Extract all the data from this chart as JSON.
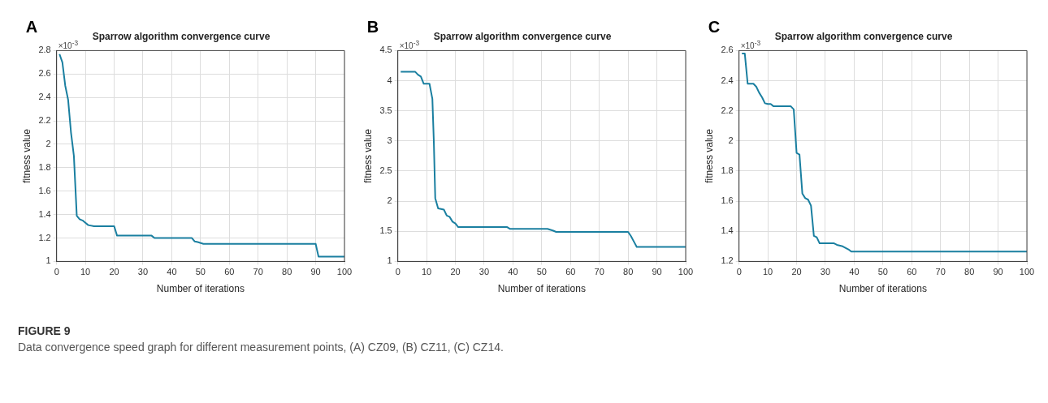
{
  "chart_data": [
    {
      "type": "line",
      "title": "Sparrow algorithm convergence curve",
      "xlabel": "Number of iterations",
      "ylabel": "fitness value",
      "annotations": [
        "A",
        "×10$^{-3}$"
      ],
      "xlim": [
        0,
        100
      ],
      "xticks": [
        0,
        10,
        20,
        30,
        40,
        50,
        60,
        70,
        80,
        90,
        100
      ],
      "ylim": [
        1,
        2.8
      ],
      "yticks": [
        1,
        1.2,
        1.4,
        1.6,
        1.8,
        2,
        2.2,
        2.4,
        2.6,
        2.8
      ],
      "grid": true,
      "series": [
        {
          "color": "#1a7fa0",
          "x": [
            1,
            2,
            3,
            4,
            5,
            5.5,
            6,
            7,
            8,
            9,
            10,
            11,
            13,
            20,
            21,
            33,
            34,
            47,
            48,
            49,
            51,
            90,
            91,
            100
          ],
          "values": [
            2.77,
            2.7,
            2.5,
            2.38,
            2.1,
            2.0,
            1.9,
            1.39,
            1.36,
            1.35,
            1.33,
            1.31,
            1.3,
            1.3,
            1.22,
            1.22,
            1.2,
            1.2,
            1.17,
            1.165,
            1.15,
            1.15,
            1.04,
            1.04
          ]
        }
      ]
    },
    {
      "type": "line",
      "title": "Sparrow algorithm convergence curve",
      "xlabel": "Number of iterations",
      "ylabel": "fitness value",
      "annotations": [
        "B",
        "×10$^{-3}$"
      ],
      "xlim": [
        0,
        100
      ],
      "xticks": [
        0,
        10,
        20,
        30,
        40,
        50,
        60,
        70,
        80,
        90,
        100
      ],
      "ylim": [
        1,
        4.5
      ],
      "yticks": [
        1,
        1.5,
        2,
        2.5,
        3,
        3.5,
        4,
        4.5
      ],
      "grid": true,
      "series": [
        {
          "color": "#1a7fa0",
          "x": [
            1,
            6,
            7,
            8,
            9,
            11,
            12,
            12.5,
            13,
            14,
            16,
            17,
            18,
            19,
            20,
            21,
            38,
            39,
            52,
            54,
            55,
            80,
            81,
            82,
            83,
            100
          ],
          "values": [
            4.15,
            4.15,
            4.1,
            4.07,
            3.95,
            3.95,
            3.7,
            3.0,
            2.05,
            1.88,
            1.86,
            1.76,
            1.74,
            1.66,
            1.63,
            1.57,
            1.57,
            1.54,
            1.54,
            1.51,
            1.49,
            1.49,
            1.42,
            1.33,
            1.24,
            1.24
          ]
        }
      ]
    },
    {
      "type": "line",
      "title": "Sparrow algorithm convergence curve",
      "xlabel": "Number of iterations",
      "ylabel": "fitness value",
      "annotations": [
        "C",
        "×10$^{-3}$"
      ],
      "xlim": [
        0,
        100
      ],
      "xticks": [
        0,
        10,
        20,
        30,
        40,
        50,
        60,
        70,
        80,
        90,
        100
      ],
      "ylim": [
        1.2,
        2.6
      ],
      "yticks": [
        1.2,
        1.4,
        1.6,
        1.8,
        2,
        2.2,
        2.4,
        2.6
      ],
      "grid": true,
      "series": [
        {
          "color": "#1a7fa0",
          "x": [
            1,
            2,
            3,
            5,
            6,
            7,
            8,
            9,
            10,
            11,
            12,
            18,
            19,
            20,
            21,
            22,
            23,
            24,
            25,
            26,
            27,
            28,
            33,
            34,
            36,
            38,
            39,
            100
          ],
          "values": [
            2.58,
            2.58,
            2.38,
            2.38,
            2.36,
            2.32,
            2.29,
            2.25,
            2.245,
            2.245,
            2.23,
            2.23,
            2.21,
            1.92,
            1.91,
            1.65,
            1.62,
            1.61,
            1.57,
            1.37,
            1.36,
            1.32,
            1.32,
            1.31,
            1.3,
            1.28,
            1.265,
            1.265
          ]
        }
      ]
    },
    {
      "type": "other",
      "title": "FIGURE 9",
      "annotations": [
        "Data convergence speed graph for different measurement points, (A) CZ09, (B) CZ11, (C) CZ14."
      ]
    }
  ]
}
